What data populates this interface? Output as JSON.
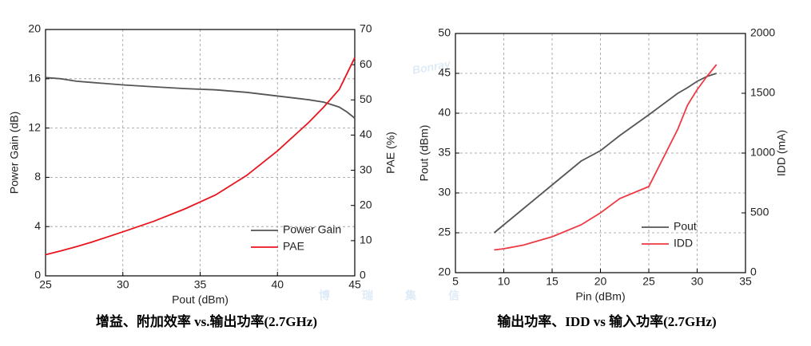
{
  "watermark": {
    "logo": "Bonray",
    "text": "博瑞集信"
  },
  "chart_data": [
    {
      "type": "line",
      "title": "增益、附加效率 vs.输出功率(2.7GHz)",
      "x_label": "Pout (dBm)",
      "y_label": "Power Gain (dB)",
      "y2_label": "PAE (%)",
      "x": [
        25,
        26,
        27,
        28,
        30,
        32,
        34,
        36,
        38,
        40,
        42,
        43,
        44,
        44.5,
        45
      ],
      "series": [
        {
          "name": "Power Gain",
          "color": "#555555",
          "values": [
            16.1,
            16.0,
            15.8,
            15.7,
            15.5,
            15.35,
            15.2,
            15.1,
            14.9,
            14.6,
            14.3,
            14.1,
            13.7,
            13.3,
            12.8
          ]
        },
        {
          "name": "PAE",
          "color": "#e8141e",
          "axis": "y2",
          "values": [
            6,
            7.1,
            8.3,
            9.6,
            12.5,
            15.5,
            19,
            23,
            28.5,
            35.5,
            43.5,
            48,
            53,
            57.5,
            62
          ]
        }
      ],
      "xlim": [
        25,
        45
      ],
      "xticks": [
        25,
        30,
        35,
        40,
        45
      ],
      "ylim": [
        0,
        20
      ],
      "yticks": [
        0,
        4,
        8,
        12,
        16,
        20
      ],
      "y2lim": [
        0,
        70
      ],
      "y2ticks": [
        0,
        10,
        20,
        30,
        40,
        50,
        60,
        70
      ],
      "grid": true,
      "legend": "lower-right"
    },
    {
      "type": "line",
      "title": "输出功率、IDD vs 输入功率(2.7GHz)",
      "x_label": "Pin (dBm)",
      "y_label": "Pout (dBm)",
      "y2_label": "IDD (mA)",
      "x": [
        9,
        10,
        12,
        15,
        18,
        20,
        22,
        25,
        28,
        29,
        30,
        31,
        32
      ],
      "series": [
        {
          "name": "Pout",
          "color": "#555555",
          "values": [
            25,
            26,
            28,
            31,
            34,
            35.3,
            37.2,
            39.8,
            42.5,
            43.2,
            44,
            44.6,
            45
          ]
        },
        {
          "name": "IDD",
          "color": "#ee3a45",
          "axis": "y2",
          "values": [
            190,
            200,
            230,
            300,
            400,
            500,
            620,
            720,
            1200,
            1400,
            1530,
            1640,
            1740
          ]
        }
      ],
      "xlim": [
        5,
        35
      ],
      "xticks": [
        5,
        10,
        15,
        20,
        25,
        30,
        35
      ],
      "ylim": [
        20,
        50
      ],
      "yticks": [
        20,
        25,
        30,
        35,
        40,
        45,
        50
      ],
      "y2lim": [
        0,
        2000
      ],
      "y2ticks": [
        0,
        500,
        1000,
        1500,
        2000
      ],
      "grid": true,
      "legend": "lower-right"
    }
  ]
}
